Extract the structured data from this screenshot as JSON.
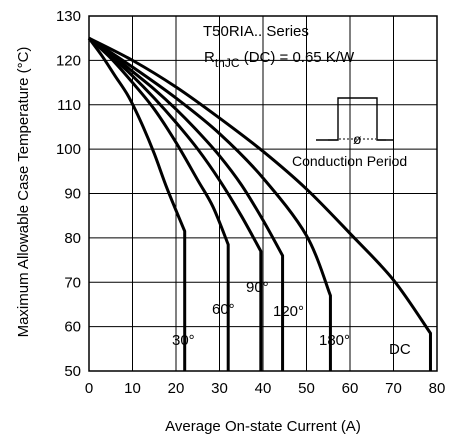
{
  "chart_data": {
    "type": "line",
    "title": "",
    "xlabel": "Average On-state Current (A)",
    "ylabel": "Maximum Allowable Case Temperature (°C)",
    "xlim": [
      0,
      80
    ],
    "ylim": [
      50,
      130
    ],
    "xticks": [
      "0",
      "10",
      "20",
      "30",
      "40",
      "50",
      "60",
      "70",
      "80"
    ],
    "yticks": [
      "50",
      "60",
      "70",
      "80",
      "90",
      "100",
      "110",
      "120",
      "130"
    ],
    "grid": true,
    "series": [
      {
        "name": "30°",
        "points": [
          [
            0,
            125
          ],
          [
            3,
            121
          ],
          [
            6,
            116.5
          ],
          [
            9,
            112
          ],
          [
            12,
            106
          ],
          [
            15,
            99
          ],
          [
            18,
            91
          ],
          [
            22,
            81.5
          ]
        ],
        "drop_to": 50,
        "label": "30°"
      },
      {
        "name": "60°",
        "points": [
          [
            0,
            125
          ],
          [
            5,
            120.5
          ],
          [
            10,
            115
          ],
          [
            15,
            109
          ],
          [
            20,
            101.5
          ],
          [
            25,
            93
          ],
          [
            28.5,
            87
          ],
          [
            32,
            78.5
          ]
        ],
        "drop_to": 50,
        "label": "60°"
      },
      {
        "name": "90°",
        "points": [
          [
            0,
            125
          ],
          [
            5,
            121
          ],
          [
            10,
            116.5
          ],
          [
            15,
            111.5
          ],
          [
            20,
            106
          ],
          [
            25,
            100
          ],
          [
            30,
            93
          ],
          [
            35,
            85
          ],
          [
            39.5,
            77
          ]
        ],
        "drop_to": 50,
        "label": "90°"
      },
      {
        "name": "120°",
        "points": [
          [
            0,
            125
          ],
          [
            5,
            121.5
          ],
          [
            10,
            117.5
          ],
          [
            15,
            113.5
          ],
          [
            20,
            109
          ],
          [
            25,
            104
          ],
          [
            30,
            98.5
          ],
          [
            35,
            92
          ],
          [
            40,
            84
          ],
          [
            44.5,
            76
          ]
        ],
        "drop_to": 50,
        "label": "120°"
      },
      {
        "name": "180°",
        "points": [
          [
            0,
            125
          ],
          [
            10,
            118.5
          ],
          [
            20,
            111.5
          ],
          [
            30,
            103.5
          ],
          [
            40,
            93.5
          ],
          [
            50,
            80.5
          ],
          [
            55.5,
            67
          ]
        ],
        "drop_to": 50,
        "label": "180°"
      },
      {
        "name": "DC",
        "points": [
          [
            0,
            125
          ],
          [
            10,
            120
          ],
          [
            20,
            114
          ],
          [
            30,
            107
          ],
          [
            40,
            99.5
          ],
          [
            50,
            91
          ],
          [
            60,
            81
          ],
          [
            70,
            70.5
          ],
          [
            78.5,
            58.5
          ]
        ],
        "drop_to": 50,
        "label": "DC"
      }
    ],
    "annotations": {
      "series_title": "T50RIA.. Series",
      "rth_prefix": "R",
      "rth_sub": "thJC",
      "rth_suffix": " (DC) = 0.65 K/W",
      "inset_label": "Conduction Period",
      "phi": "ø"
    }
  }
}
